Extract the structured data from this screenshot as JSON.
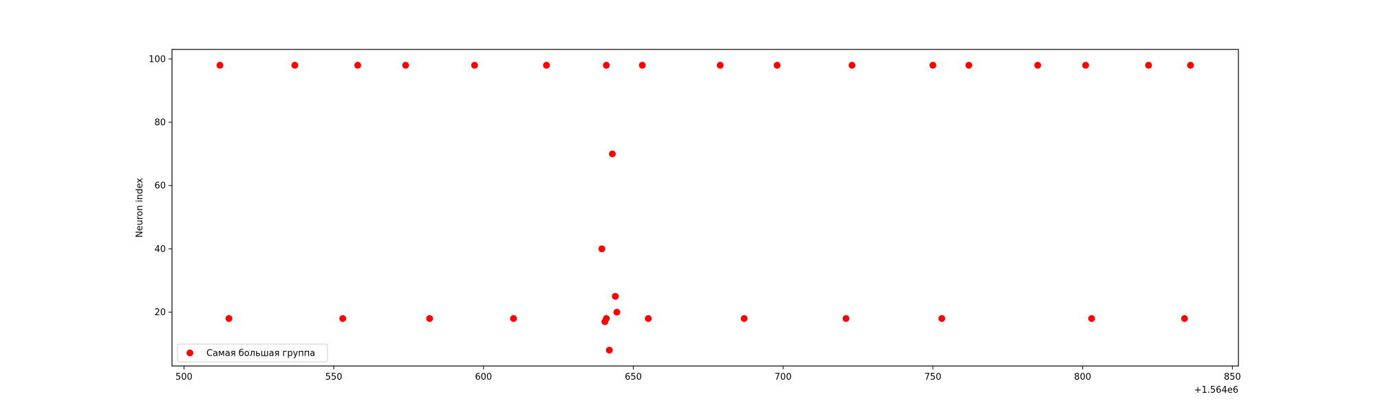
{
  "chart_data": {
    "type": "scatter",
    "title": "",
    "xlabel": "",
    "ylabel": "Neuron index",
    "x_offset_label": "+1.564e6",
    "xlim": [
      496,
      852
    ],
    "ylim": [
      3,
      103
    ],
    "xticks": [
      500,
      550,
      600,
      650,
      700,
      750,
      800,
      850
    ],
    "yticks": [
      20,
      40,
      60,
      80,
      100
    ],
    "grid": false,
    "legend_position": "lower-left",
    "series": [
      {
        "name": "Самая большая группа",
        "color": "#ff0000",
        "points": [
          {
            "x": 512,
            "y": 98
          },
          {
            "x": 537,
            "y": 98
          },
          {
            "x": 558,
            "y": 98
          },
          {
            "x": 574,
            "y": 98
          },
          {
            "x": 597,
            "y": 98
          },
          {
            "x": 621,
            "y": 98
          },
          {
            "x": 641,
            "y": 98
          },
          {
            "x": 653,
            "y": 98
          },
          {
            "x": 679,
            "y": 98
          },
          {
            "x": 698,
            "y": 98
          },
          {
            "x": 723,
            "y": 98
          },
          {
            "x": 750,
            "y": 98
          },
          {
            "x": 762,
            "y": 98
          },
          {
            "x": 785,
            "y": 98
          },
          {
            "x": 801,
            "y": 98
          },
          {
            "x": 822,
            "y": 98
          },
          {
            "x": 836,
            "y": 98
          },
          {
            "x": 643,
            "y": 70
          },
          {
            "x": 639.5,
            "y": 40
          },
          {
            "x": 644,
            "y": 25
          },
          {
            "x": 644.5,
            "y": 20
          },
          {
            "x": 515,
            "y": 18
          },
          {
            "x": 553,
            "y": 18
          },
          {
            "x": 582,
            "y": 18
          },
          {
            "x": 610,
            "y": 18
          },
          {
            "x": 641,
            "y": 18
          },
          {
            "x": 655,
            "y": 18
          },
          {
            "x": 687,
            "y": 18
          },
          {
            "x": 721,
            "y": 18
          },
          {
            "x": 753,
            "y": 18
          },
          {
            "x": 803,
            "y": 18
          },
          {
            "x": 834,
            "y": 18
          },
          {
            "x": 640.5,
            "y": 17
          },
          {
            "x": 642,
            "y": 8
          }
        ]
      }
    ]
  }
}
